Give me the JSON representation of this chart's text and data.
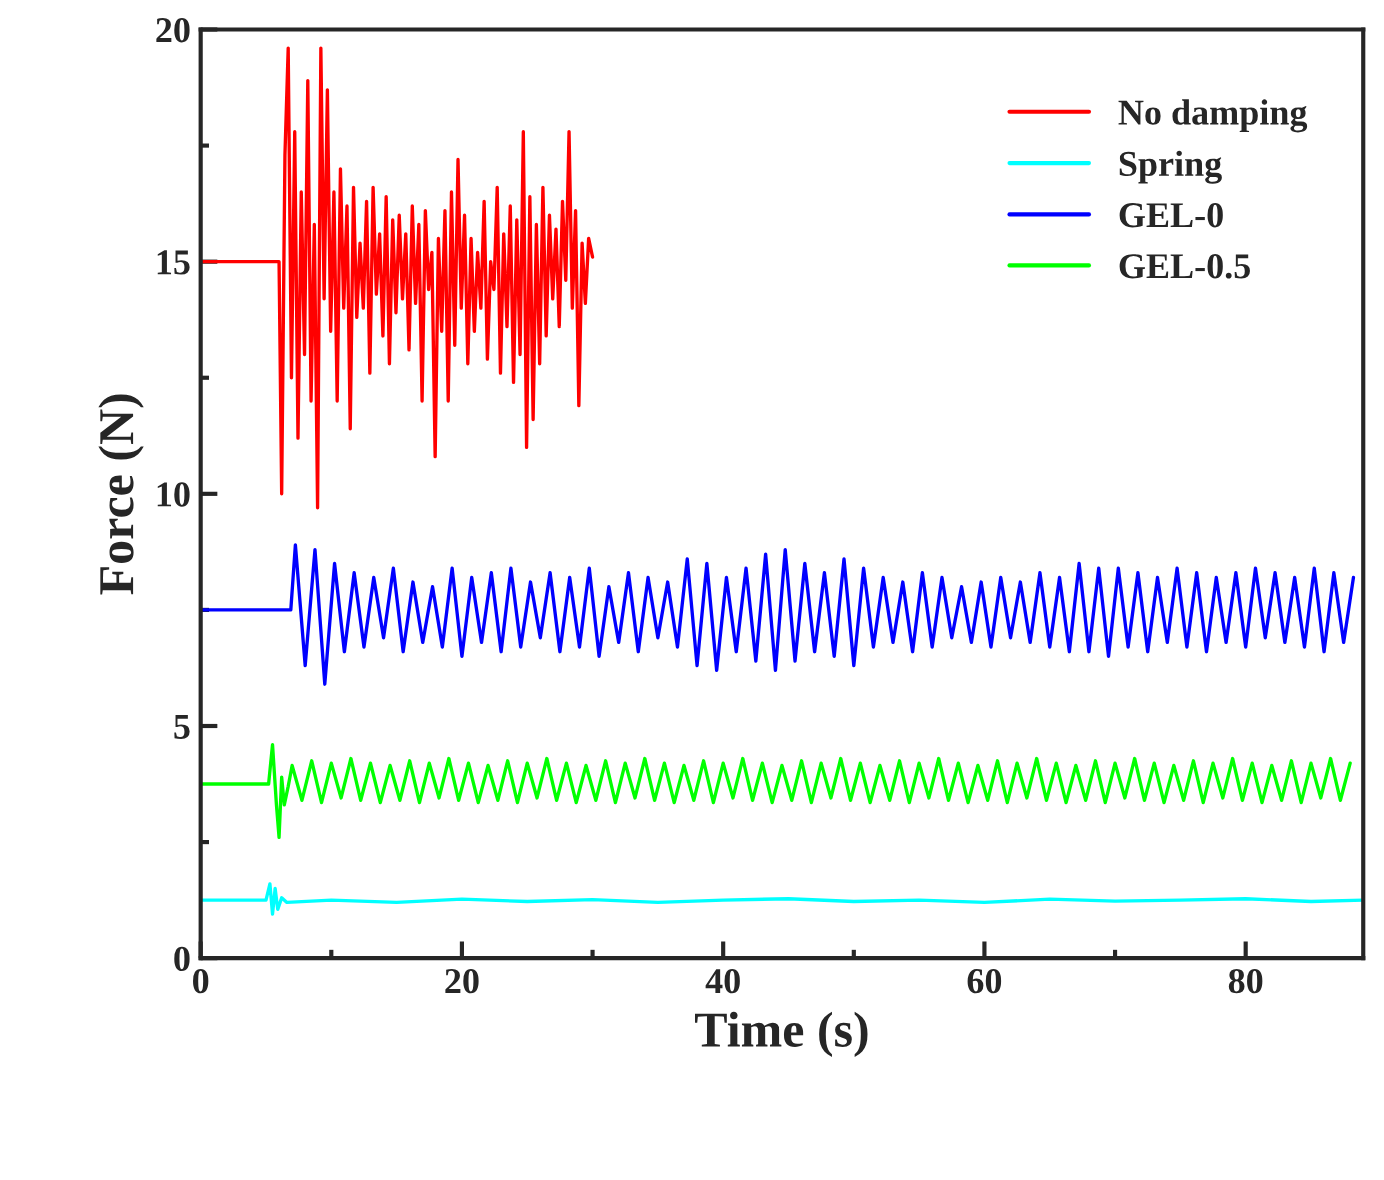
{
  "chart_data": {
    "type": "line",
    "xlabel": "Time (s)",
    "ylabel": "Force (N)",
    "xlim": [
      0,
      89
    ],
    "ylim": [
      0,
      20
    ],
    "xticks": [
      0,
      20,
      40,
      60,
      80
    ],
    "yticks": [
      0,
      5,
      10,
      15,
      20
    ],
    "grid": false,
    "legend": "top right",
    "marker": "none",
    "line_style": "solid",
    "series": [
      {
        "name": "No damping",
        "color": "#ff0000",
        "x": [
          0,
          6.0,
          6.2,
          6.45,
          6.7,
          6.95,
          7.2,
          7.45,
          7.7,
          7.95,
          8.2,
          8.45,
          8.7,
          8.95,
          9.2,
          9.45,
          9.7,
          9.95,
          10.2,
          10.45,
          10.7,
          10.95,
          11.2,
          11.45,
          11.7,
          11.95,
          12.2,
          12.45,
          12.7,
          12.95,
          13.2,
          13.45,
          13.7,
          13.95,
          14.2,
          14.45,
          14.7,
          14.95,
          15.2,
          15.45,
          15.7,
          15.95,
          16.2,
          16.45,
          16.7,
          16.95,
          17.2,
          17.45,
          17.7,
          17.95,
          18.2,
          18.45,
          18.7,
          18.95,
          19.2,
          19.45,
          19.7,
          19.95,
          20.2,
          20.45,
          20.7,
          20.95,
          21.2,
          21.45,
          21.7,
          21.95,
          22.2,
          22.45,
          22.7,
          22.95,
          23.2,
          23.45,
          23.7,
          23.95,
          24.2,
          24.45,
          24.7,
          24.95,
          25.2,
          25.45,
          25.7,
          25.95,
          26.2,
          26.45,
          26.7,
          26.95,
          27.2,
          27.45,
          27.7,
          27.95,
          28.2,
          28.45,
          28.7,
          28.95,
          29.2,
          29.45,
          29.7,
          30.0
        ],
        "values": [
          15,
          15,
          10.0,
          17.3,
          19.6,
          12.5,
          17.8,
          11.2,
          16.5,
          13.0,
          18.9,
          12.0,
          15.8,
          9.7,
          19.6,
          14.2,
          18.7,
          13.5,
          16.5,
          12.0,
          17.0,
          14.0,
          16.2,
          11.4,
          16.6,
          13.8,
          15.4,
          14.0,
          16.3,
          12.6,
          16.6,
          14.3,
          15.6,
          13.4,
          16.4,
          12.8,
          15.9,
          13.9,
          16.0,
          14.2,
          15.6,
          13.1,
          16.2,
          14.1,
          15.8,
          12.0,
          16.1,
          14.4,
          15.2,
          10.8,
          15.5,
          13.5,
          16.1,
          12.0,
          16.5,
          13.2,
          17.2,
          14.0,
          16.0,
          12.8,
          15.5,
          13.5,
          15.2,
          14.0,
          16.3,
          12.9,
          15.0,
          14.4,
          16.6,
          12.6,
          15.6,
          13.6,
          16.2,
          12.4,
          15.9,
          13.0,
          17.8,
          11.0,
          16.4,
          11.6,
          15.8,
          12.8,
          16.6,
          13.4,
          16.0,
          14.2,
          15.7,
          13.6,
          16.3,
          14.6,
          17.8,
          14.0,
          16.1,
          11.9,
          15.4,
          14.1,
          15.5,
          15.1
        ]
      },
      {
        "name": "Spring",
        "color": "#00ffff",
        "x": [
          0,
          5.0,
          5.3,
          5.5,
          5.7,
          5.9,
          6.2,
          6.6,
          10,
          15,
          20,
          25,
          30,
          35,
          40,
          45,
          50,
          55,
          60,
          65,
          70,
          75,
          80,
          85,
          89
        ],
        "values": [
          1.25,
          1.25,
          1.6,
          0.95,
          1.5,
          1.05,
          1.3,
          1.2,
          1.25,
          1.2,
          1.27,
          1.22,
          1.26,
          1.2,
          1.25,
          1.28,
          1.22,
          1.25,
          1.2,
          1.27,
          1.23,
          1.25,
          1.28,
          1.22,
          1.25
        ]
      },
      {
        "name": "GEL-0",
        "color": "#0000ff",
        "x": [
          0,
          6.9,
          7.25,
          8,
          8.75,
          9.5,
          10.25,
          11,
          11.75,
          12.5,
          13.25,
          14,
          14.75,
          15.5,
          16.25,
          17,
          17.75,
          18.5,
          19.25,
          20,
          20.75,
          21.5,
          22.25,
          23,
          23.75,
          24.5,
          25.25,
          26,
          26.75,
          27.5,
          28.25,
          29,
          29.75,
          30.5,
          31.25,
          32,
          32.75,
          33.5,
          34.25,
          35,
          35.75,
          36.5,
          37.25,
          38,
          38.75,
          39.5,
          40.25,
          41,
          41.75,
          42.5,
          43.25,
          44,
          44.75,
          45.5,
          46.25,
          47,
          47.75,
          48.5,
          49.25,
          50,
          50.75,
          51.5,
          52.25,
          53,
          53.75,
          54.5,
          55.25,
          56,
          56.75,
          57.5,
          58.25,
          59,
          59.75,
          60.5,
          61.25,
          62,
          62.75,
          63.5,
          64.25,
          65,
          65.75,
          66.5,
          67.25,
          68,
          68.75,
          69.5,
          70.25,
          71,
          71.75,
          72.5,
          73.25,
          74,
          74.75,
          75.5,
          76.25,
          77,
          77.75,
          78.5,
          79.25,
          80,
          80.75,
          81.5,
          82.25,
          83,
          83.75,
          84.5,
          85.25,
          86,
          86.75,
          87.5,
          88.25
        ],
        "values": [
          7.5,
          7.5,
          8.9,
          6.3,
          8.8,
          5.9,
          8.5,
          6.6,
          8.3,
          6.7,
          8.2,
          6.9,
          8.4,
          6.6,
          8.1,
          6.8,
          8.0,
          6.7,
          8.4,
          6.5,
          8.2,
          6.8,
          8.3,
          6.6,
          8.4,
          6.7,
          8.1,
          6.9,
          8.3,
          6.6,
          8.2,
          6.7,
          8.4,
          6.5,
          8.0,
          6.8,
          8.3,
          6.6,
          8.2,
          6.9,
          8.1,
          6.7,
          8.6,
          6.3,
          8.5,
          6.2,
          8.2,
          6.6,
          8.4,
          6.4,
          8.7,
          6.2,
          8.8,
          6.4,
          8.5,
          6.6,
          8.3,
          6.5,
          8.6,
          6.3,
          8.4,
          6.7,
          8.2,
          6.8,
          8.1,
          6.6,
          8.3,
          6.7,
          8.2,
          6.9,
          8.0,
          6.8,
          8.1,
          6.7,
          8.2,
          6.9,
          8.1,
          6.8,
          8.3,
          6.7,
          8.2,
          6.6,
          8.5,
          6.6,
          8.4,
          6.5,
          8.4,
          6.7,
          8.3,
          6.6,
          8.2,
          6.8,
          8.4,
          6.7,
          8.3,
          6.6,
          8.2,
          6.8,
          8.3,
          6.7,
          8.4,
          6.9,
          8.3,
          6.8,
          8.2,
          6.7,
          8.4,
          6.6,
          8.3,
          6.8,
          8.2
        ]
      },
      {
        "name": "GEL-0.5",
        "color": "#00ff00",
        "x": [
          0,
          5.2,
          5.5,
          5.8,
          6.0,
          6.2,
          6.4,
          6.7,
          7,
          7.75,
          8.5,
          9.25,
          10,
          10.75,
          11.5,
          12.25,
          13,
          13.75,
          14.5,
          15.25,
          16,
          16.75,
          17.5,
          18.25,
          19,
          19.75,
          20.5,
          21.25,
          22,
          22.75,
          23.5,
          24.25,
          25,
          25.75,
          26.5,
          27.25,
          28,
          28.75,
          29.5,
          30.25,
          31,
          31.75,
          32.5,
          33.25,
          34,
          34.75,
          35.5,
          36.25,
          37,
          37.75,
          38.5,
          39.25,
          40,
          40.75,
          41.5,
          42.25,
          43,
          43.75,
          44.5,
          45.25,
          46,
          46.75,
          47.5,
          48.25,
          49,
          49.75,
          50.5,
          51.25,
          52,
          52.75,
          53.5,
          54.25,
          55,
          55.75,
          56.5,
          57.25,
          58,
          58.75,
          59.5,
          60.25,
          61,
          61.75,
          62.5,
          63.25,
          64,
          64.75,
          65.5,
          66.25,
          67,
          67.75,
          68.5,
          69.25,
          70,
          70.75,
          71.5,
          72.25,
          73,
          73.75,
          74.5,
          75.25,
          76,
          76.75,
          77.5,
          78.25,
          79,
          79.75,
          80.5,
          81.25,
          82,
          82.75,
          83.5,
          84.25,
          85,
          85.75,
          86.5,
          87.25,
          88
        ],
        "values": [
          3.75,
          3.75,
          4.6,
          3.3,
          2.6,
          3.9,
          3.3,
          3.7,
          4.15,
          3.4,
          4.25,
          3.35,
          4.2,
          3.45,
          4.3,
          3.4,
          4.2,
          3.35,
          4.15,
          3.4,
          4.25,
          3.35,
          4.2,
          3.45,
          4.3,
          3.4,
          4.2,
          3.35,
          4.15,
          3.4,
          4.25,
          3.35,
          4.2,
          3.45,
          4.3,
          3.4,
          4.2,
          3.35,
          4.15,
          3.4,
          4.25,
          3.35,
          4.2,
          3.45,
          4.3,
          3.4,
          4.2,
          3.35,
          4.15,
          3.4,
          4.25,
          3.35,
          4.2,
          3.45,
          4.3,
          3.4,
          4.2,
          3.35,
          4.15,
          3.4,
          4.25,
          3.35,
          4.2,
          3.45,
          4.3,
          3.4,
          4.2,
          3.35,
          4.15,
          3.4,
          4.25,
          3.35,
          4.2,
          3.45,
          4.3,
          3.4,
          4.2,
          3.35,
          4.15,
          3.4,
          4.25,
          3.35,
          4.2,
          3.45,
          4.3,
          3.4,
          4.2,
          3.35,
          4.15,
          3.4,
          4.25,
          3.35,
          4.2,
          3.45,
          4.3,
          3.4,
          4.2,
          3.35,
          4.15,
          3.4,
          4.25,
          3.35,
          4.2,
          3.45,
          4.3,
          3.4,
          4.2,
          3.35,
          4.15,
          3.4,
          4.25,
          3.35,
          4.2,
          3.45,
          4.3,
          3.4,
          4.2
        ]
      }
    ]
  }
}
